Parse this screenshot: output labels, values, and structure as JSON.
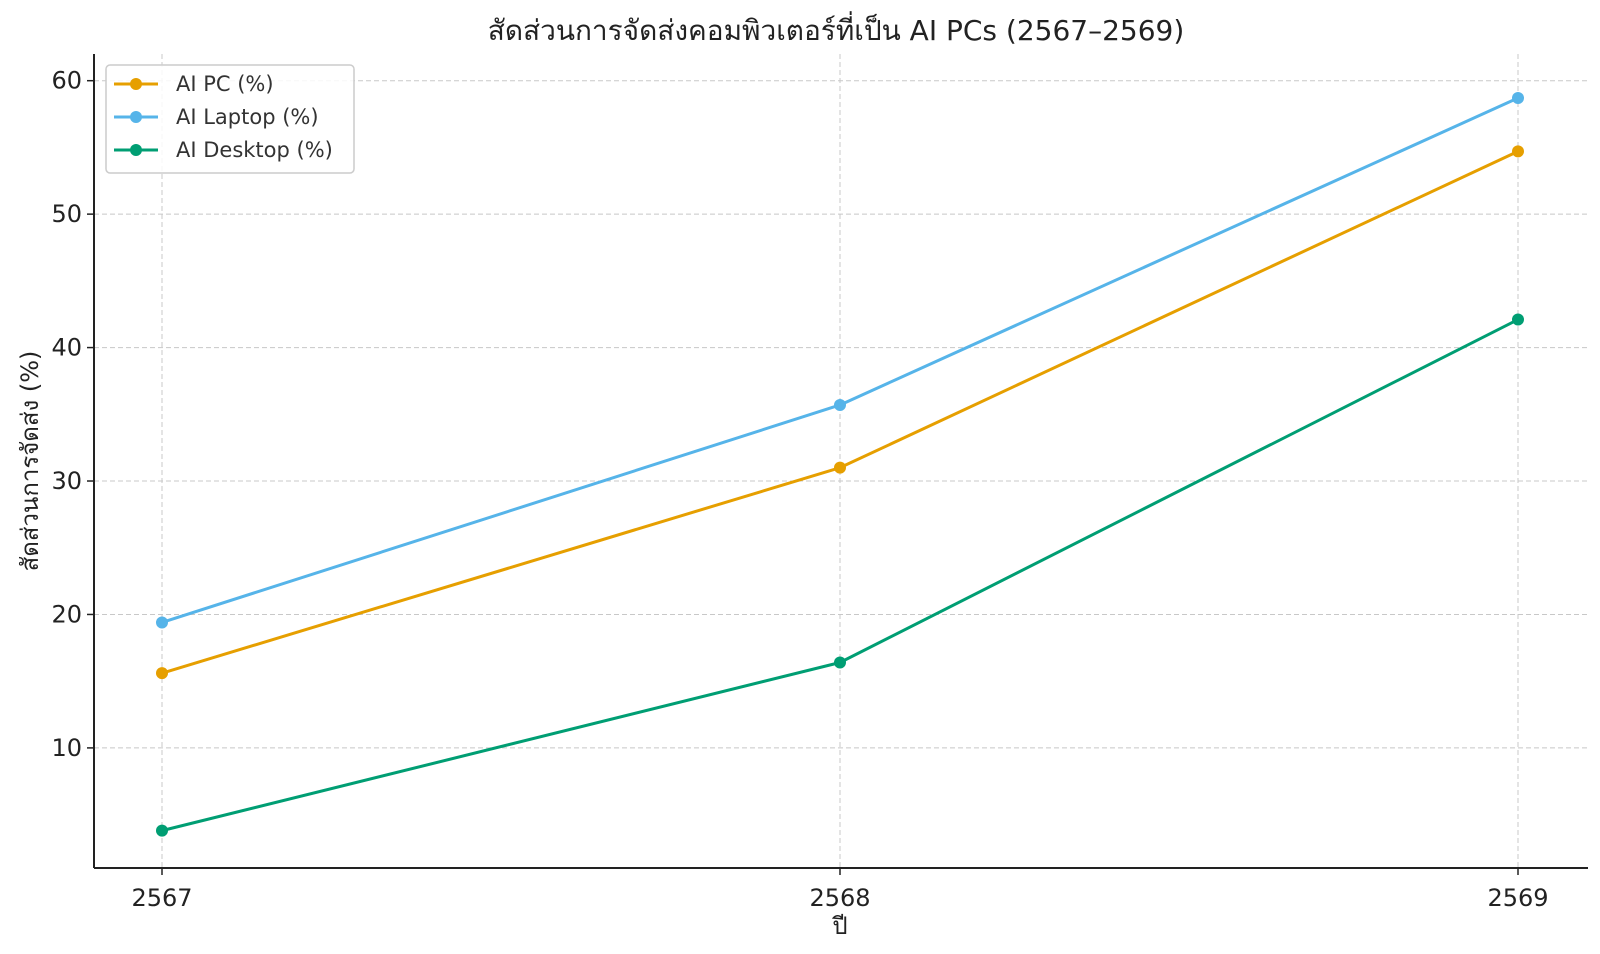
{
  "chart_data": {
    "type": "line",
    "title": "สัดส่วนการจัดส่งคอมพิวเตอร์ที่เป็น AI PCs (2567–2569)",
    "xlabel": "ปี",
    "ylabel": "สัดส่วนการจัดส่ง (%)",
    "categories": [
      "2567",
      "2568",
      "2569"
    ],
    "ylim": [
      1,
      62
    ],
    "yticks": [
      10,
      20,
      30,
      40,
      50,
      60
    ],
    "grid": true,
    "legend_position": "top-left",
    "series": [
      {
        "name": "AI PC (%)",
        "color": "#E69F00",
        "values": [
          15.6,
          31.0,
          54.7
        ]
      },
      {
        "name": "AI Laptop (%)",
        "color": "#56B4E9",
        "values": [
          19.4,
          35.7,
          58.7
        ]
      },
      {
        "name": "AI Desktop (%)",
        "color": "#009E73",
        "values": [
          3.8,
          16.4,
          42.1
        ]
      }
    ]
  }
}
